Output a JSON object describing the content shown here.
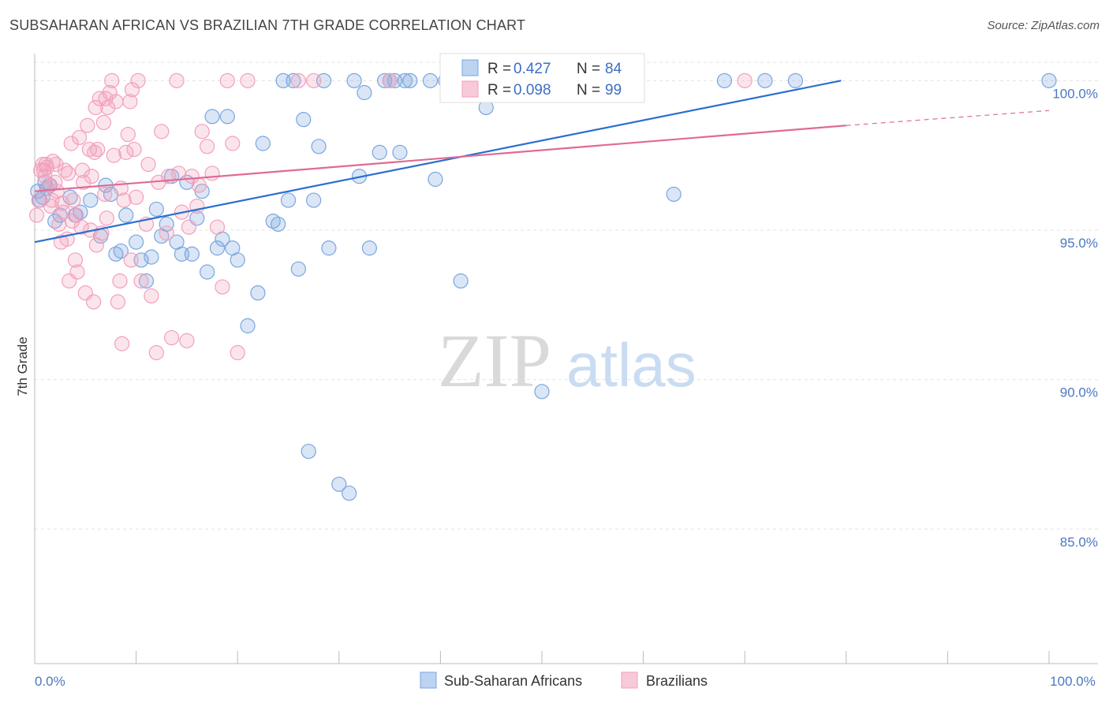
{
  "title": "SUBSAHARAN AFRICAN VS BRAZILIAN 7TH GRADE CORRELATION CHART",
  "source": "Source: ZipAtlas.com",
  "watermark": {
    "zip": "ZIP",
    "atlas": "atlas"
  },
  "chart_data": {
    "type": "scatter",
    "xlabel": "",
    "ylabel": "7th Grade",
    "xlim": [
      0,
      100
    ],
    "ylim": [
      80.5,
      100.8
    ],
    "x_tick_labels": [
      {
        "value": 0,
        "label": "0.0%"
      },
      {
        "value": 100,
        "label": "100.0%"
      }
    ],
    "y_tick_labels": [
      {
        "value": 100,
        "label": "100.0%"
      },
      {
        "value": 95,
        "label": "95.0%"
      },
      {
        "value": 90,
        "label": "90.0%"
      },
      {
        "value": 85,
        "label": "85.0%"
      }
    ],
    "grid": true,
    "legend_position": "top-center",
    "legend": [
      {
        "series": "Sub-Saharan Africans",
        "r_label": "R =",
        "r_value": "0.427",
        "n_label": "N =",
        "n_value": "84"
      },
      {
        "series": "Brazilians",
        "r_label": "R =",
        "r_value": "0.098",
        "n_label": "N =",
        "n_value": "99"
      }
    ],
    "series": [
      {
        "name": "Sub-Saharan Africans",
        "color": "#7aa6e0",
        "line_color": "#2a6fd0",
        "trend": {
          "x": [
            0,
            79.5
          ],
          "y": [
            94.6,
            100.0
          ]
        },
        "points": [
          [
            0.3,
            96.3
          ],
          [
            0.5,
            96.0
          ],
          [
            0.8,
            96.1
          ],
          [
            1.0,
            96.6
          ],
          [
            1.2,
            96.4
          ],
          [
            1.5,
            96.5
          ],
          [
            2.0,
            95.3
          ],
          [
            2.5,
            95.5
          ],
          [
            3.5,
            96.1
          ],
          [
            4.0,
            95.5
          ],
          [
            4.5,
            95.6
          ],
          [
            5.5,
            96.0
          ],
          [
            6.5,
            94.8
          ],
          [
            7.0,
            96.5
          ],
          [
            7.5,
            96.2
          ],
          [
            8.0,
            94.2
          ],
          [
            8.5,
            94.3
          ],
          [
            9.0,
            95.5
          ],
          [
            10.0,
            94.6
          ],
          [
            10.5,
            94.0
          ],
          [
            11.0,
            93.3
          ],
          [
            11.5,
            94.1
          ],
          [
            12.0,
            95.7
          ],
          [
            12.5,
            94.8
          ],
          [
            13.0,
            95.2
          ],
          [
            13.5,
            96.8
          ],
          [
            14.0,
            94.6
          ],
          [
            14.5,
            94.2
          ],
          [
            15.0,
            96.6
          ],
          [
            15.5,
            94.2
          ],
          [
            16.0,
            95.4
          ],
          [
            16.5,
            96.3
          ],
          [
            17.0,
            93.6
          ],
          [
            17.5,
            98.8
          ],
          [
            18.0,
            94.4
          ],
          [
            18.5,
            94.7
          ],
          [
            19.0,
            98.8
          ],
          [
            19.5,
            94.4
          ],
          [
            20.0,
            94.0
          ],
          [
            21.0,
            91.8
          ],
          [
            22.0,
            92.9
          ],
          [
            22.5,
            97.9
          ],
          [
            23.5,
            95.3
          ],
          [
            24.0,
            95.2
          ],
          [
            25.0,
            96.0
          ],
          [
            24.5,
            100.0
          ],
          [
            25.5,
            100.0
          ],
          [
            26.0,
            93.7
          ],
          [
            26.5,
            98.7
          ],
          [
            27.0,
            87.6
          ],
          [
            27.5,
            96.0
          ],
          [
            28.0,
            97.8
          ],
          [
            28.5,
            100.0
          ],
          [
            29.0,
            94.4
          ],
          [
            31.5,
            100.0
          ],
          [
            32.0,
            96.8
          ],
          [
            32.5,
            99.6
          ],
          [
            33.0,
            94.4
          ],
          [
            31.0,
            86.2
          ],
          [
            34.0,
            97.6
          ],
          [
            34.5,
            100.0
          ],
          [
            35.0,
            100.0
          ],
          [
            35.5,
            100.0
          ],
          [
            36.0,
            97.6
          ],
          [
            36.5,
            100.0
          ],
          [
            37.0,
            100.0
          ],
          [
            39.0,
            100.0
          ],
          [
            41.0,
            100.0
          ],
          [
            44.5,
            99.1
          ],
          [
            44.0,
            100.0
          ],
          [
            47.5,
            100.0
          ],
          [
            51.0,
            100.0
          ],
          [
            54.0,
            100.0
          ],
          [
            56.0,
            100.0
          ],
          [
            63.0,
            96.2
          ],
          [
            68.0,
            100.0
          ],
          [
            72.0,
            100.0
          ],
          [
            75.0,
            100.0
          ],
          [
            100.0,
            100.0
          ],
          [
            39.5,
            96.7
          ],
          [
            42.0,
            93.3
          ],
          [
            50.0,
            89.6
          ],
          [
            30.0,
            86.5
          ],
          [
            40.5,
            100.0
          ]
        ]
      },
      {
        "name": "Brazilians",
        "color": "#f2a0bb",
        "line_color": "#e06a94",
        "trend": {
          "x": [
            0,
            80.0
          ],
          "y": [
            96.3,
            98.5
          ]
        },
        "trend_extension": {
          "x": [
            80.0,
            100.0
          ],
          "y": [
            98.5,
            99.0
          ]
        },
        "points": [
          [
            0.2,
            95.5
          ],
          [
            0.4,
            96.0
          ],
          [
            0.6,
            97.0
          ],
          [
            0.8,
            97.2
          ],
          [
            1.0,
            96.8
          ],
          [
            1.2,
            97.1
          ],
          [
            1.4,
            96.5
          ],
          [
            1.6,
            95.8
          ],
          [
            1.8,
            97.3
          ],
          [
            2.0,
            96.6
          ],
          [
            2.2,
            96.3
          ],
          [
            2.4,
            95.2
          ],
          [
            2.6,
            94.6
          ],
          [
            2.8,
            95.6
          ],
          [
            3.0,
            97.0
          ],
          [
            3.2,
            94.7
          ],
          [
            3.4,
            93.3
          ],
          [
            3.6,
            97.9
          ],
          [
            3.8,
            96.0
          ],
          [
            4.0,
            94.0
          ],
          [
            4.2,
            93.6
          ],
          [
            4.4,
            98.1
          ],
          [
            4.6,
            95.1
          ],
          [
            4.8,
            96.6
          ],
          [
            5.0,
            92.9
          ],
          [
            5.2,
            98.5
          ],
          [
            5.4,
            97.7
          ],
          [
            5.6,
            96.8
          ],
          [
            5.8,
            92.6
          ],
          [
            6.0,
            99.1
          ],
          [
            6.2,
            97.7
          ],
          [
            6.4,
            99.4
          ],
          [
            6.6,
            94.9
          ],
          [
            6.8,
            98.6
          ],
          [
            7.0,
            99.4
          ],
          [
            7.2,
            99.1
          ],
          [
            7.4,
            99.6
          ],
          [
            7.6,
            100.0
          ],
          [
            7.8,
            97.5
          ],
          [
            8.0,
            99.3
          ],
          [
            8.2,
            92.6
          ],
          [
            8.4,
            93.3
          ],
          [
            8.6,
            91.2
          ],
          [
            8.8,
            96.0
          ],
          [
            9.0,
            97.6
          ],
          [
            9.2,
            98.2
          ],
          [
            9.4,
            99.3
          ],
          [
            9.6,
            99.7
          ],
          [
            9.8,
            97.7
          ],
          [
            10.0,
            96.1
          ],
          [
            10.5,
            93.3
          ],
          [
            11.0,
            95.2
          ],
          [
            11.5,
            92.8
          ],
          [
            12.0,
            90.9
          ],
          [
            12.5,
            98.3
          ],
          [
            13.0,
            94.9
          ],
          [
            13.5,
            91.4
          ],
          [
            14.0,
            100.0
          ],
          [
            14.5,
            95.6
          ],
          [
            15.0,
            91.3
          ],
          [
            15.5,
            96.8
          ],
          [
            16.0,
            95.8
          ],
          [
            16.5,
            98.3
          ],
          [
            17.0,
            97.8
          ],
          [
            17.5,
            96.9
          ],
          [
            18.0,
            95.1
          ],
          [
            18.5,
            93.1
          ],
          [
            19.0,
            100.0
          ],
          [
            19.5,
            97.9
          ],
          [
            20.0,
            90.9
          ],
          [
            21.0,
            100.0
          ],
          [
            10.2,
            100.0
          ],
          [
            26.0,
            100.0
          ],
          [
            27.5,
            100.0
          ],
          [
            35.0,
            100.0
          ],
          [
            50.0,
            100.0
          ],
          [
            70.0,
            100.0
          ],
          [
            2.1,
            97.2
          ],
          [
            3.3,
            96.9
          ],
          [
            4.1,
            95.5
          ],
          [
            5.5,
            95.0
          ],
          [
            6.1,
            94.5
          ],
          [
            7.1,
            95.4
          ],
          [
            8.5,
            96.4
          ],
          [
            9.5,
            94.0
          ],
          [
            11.2,
            97.2
          ],
          [
            12.2,
            96.6
          ],
          [
            13.2,
            96.8
          ],
          [
            14.2,
            96.9
          ],
          [
            15.2,
            95.1
          ],
          [
            1.1,
            97.2
          ],
          [
            0.9,
            97.0
          ],
          [
            1.7,
            96.0
          ],
          [
            2.7,
            95.9
          ],
          [
            3.7,
            95.3
          ],
          [
            4.7,
            97.0
          ],
          [
            5.9,
            97.6
          ],
          [
            6.9,
            96.2
          ],
          [
            16.2,
            96.5
          ]
        ]
      }
    ]
  }
}
